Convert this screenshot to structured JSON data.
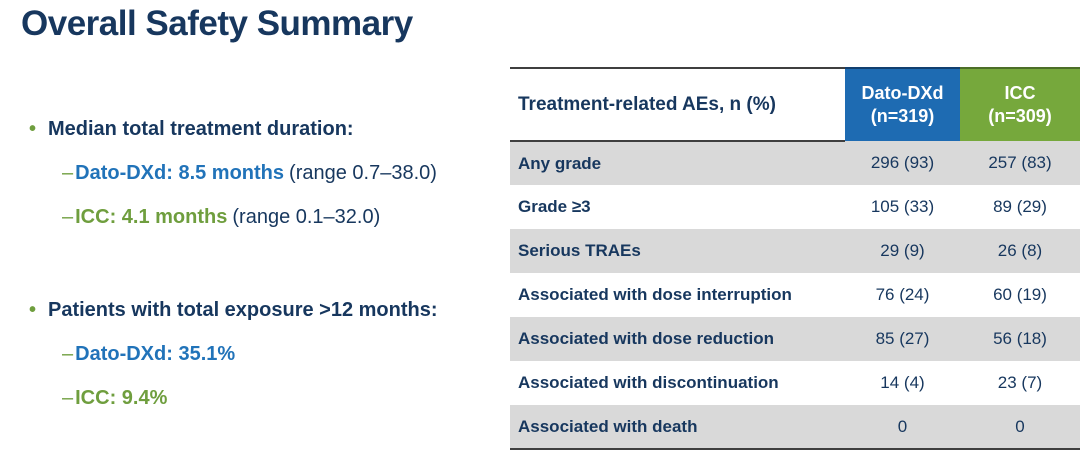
{
  "title": "Overall Safety Summary",
  "colors": {
    "navy": "#17375E",
    "blue": "#2173B9",
    "green": "#6F9E3E",
    "header_blue": "#1E6BB2",
    "header_blue_dark": "#123F6F",
    "header_green": "#76A83C",
    "header_green_dark": "#4C6E27",
    "row_gray": "#D9D9D9",
    "border_dark": "#3F3F3F"
  },
  "markers": {
    "bullet": "•",
    "dash": "–"
  },
  "bullets": [
    {
      "label": "Median total treatment duration:",
      "items": [
        {
          "value": "Dato-DXd: 8.5 months",
          "suffix": "(range 0.7–38.0)"
        },
        {
          "value": "ICC: 4.1 months",
          "suffix": "(range 0.1–32.0)"
        }
      ]
    },
    {
      "label": "Patients with total exposure >12 months:",
      "items": [
        {
          "value": "Dato-DXd: 35.1%",
          "suffix": ""
        },
        {
          "value": "ICC: 9.4%",
          "suffix": ""
        }
      ]
    }
  ],
  "table": {
    "row_header": "Treatment-related AEs, n (%)",
    "columns": [
      {
        "label": "Dato-DXd\n(n=319)"
      },
      {
        "label": "ICC\n(n=309)"
      }
    ],
    "rows": [
      {
        "label": "Any grade",
        "dato_dxd": "296 (93)",
        "icc": "257 (83)"
      },
      {
        "label": "Grade ≥3",
        "dato_dxd": "105 (33)",
        "icc": "89 (29)"
      },
      {
        "label": "Serious TRAEs",
        "dato_dxd": "29 (9)",
        "icc": "26 (8)"
      },
      {
        "label": "Associated with dose interruption",
        "dato_dxd": "76 (24)",
        "icc": "60 (19)"
      },
      {
        "label": "Associated with dose reduction",
        "dato_dxd": "85 (27)",
        "icc": "56 (18)"
      },
      {
        "label": "Associated with discontinuation",
        "dato_dxd": "14 (4)",
        "icc": "23 (7)"
      },
      {
        "label": "Associated with death",
        "dato_dxd": "0",
        "icc": "0"
      }
    ]
  }
}
